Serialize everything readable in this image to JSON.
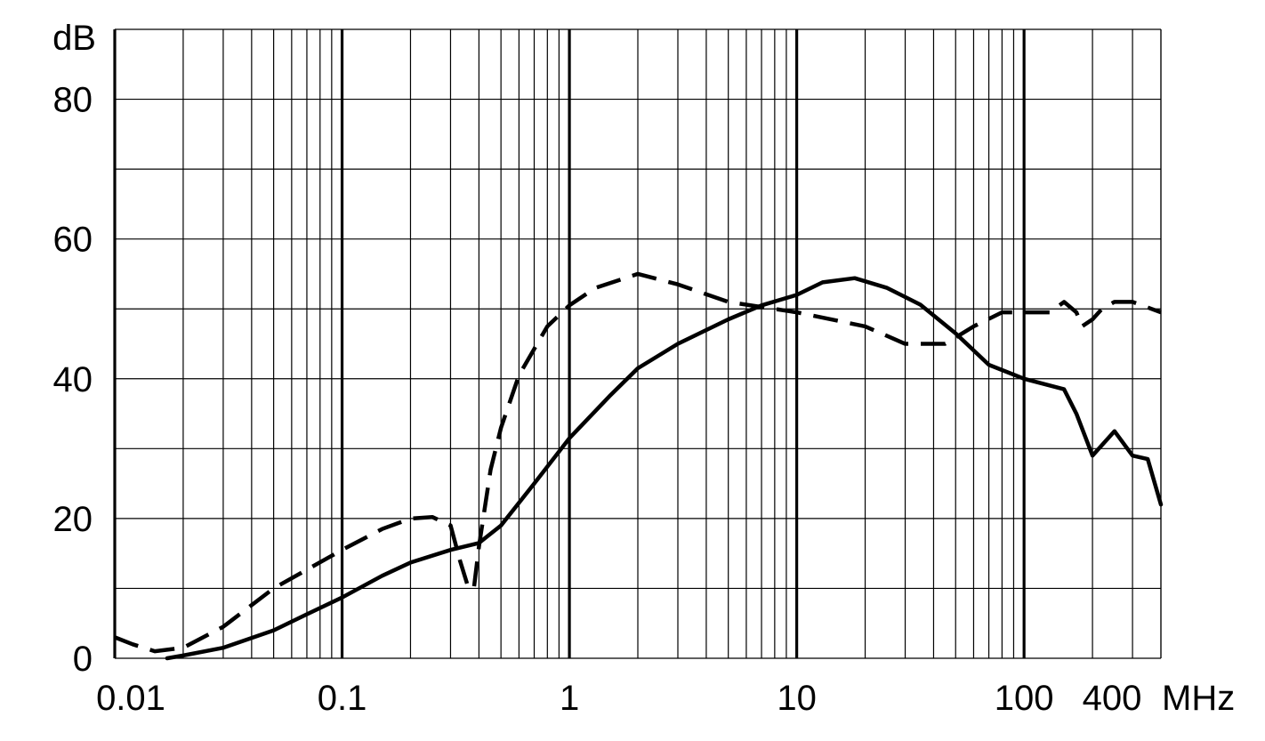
{
  "chart_data": {
    "type": "line",
    "title": "",
    "xlabel": "",
    "ylabel": "",
    "x_scale": "log",
    "xlim": [
      0.01,
      400
    ],
    "ylim": [
      0,
      90
    ],
    "grid": true,
    "y_unit_label": "dB",
    "x_unit_label": "MHz",
    "x_tick_labels": [
      {
        "value": 0.01,
        "label": "0.01"
      },
      {
        "value": 0.1,
        "label": "0.1"
      },
      {
        "value": 1,
        "label": "1"
      },
      {
        "value": 10,
        "label": "10"
      },
      {
        "value": 100,
        "label": "100"
      },
      {
        "value": 400,
        "label": "400"
      }
    ],
    "y_tick_labels": [
      {
        "value": 0,
        "label": "0"
      },
      {
        "value": 20,
        "label": "20"
      },
      {
        "value": 40,
        "label": "40"
      },
      {
        "value": 60,
        "label": "60"
      },
      {
        "value": 80,
        "label": "80"
      }
    ],
    "y_gridlines": [
      0,
      10,
      20,
      30,
      40,
      50,
      60,
      70,
      80,
      90
    ],
    "series": [
      {
        "style": "solid",
        "x": [
          0.017,
          0.02,
          0.03,
          0.05,
          0.07,
          0.1,
          0.15,
          0.2,
          0.3,
          0.4,
          0.5,
          0.7,
          1,
          1.5,
          2,
          3,
          5,
          7,
          10,
          13,
          18,
          25,
          35,
          50,
          70,
          100,
          150,
          170,
          200,
          250,
          300,
          350,
          400
        ],
        "y": [
          0,
          0.4,
          1.5,
          4,
          6.3,
          8.7,
          11.8,
          13.7,
          15.5,
          16.5,
          19,
          25,
          31.5,
          37.5,
          41.5,
          45,
          48.5,
          50.5,
          52,
          53.8,
          54.4,
          53,
          50.6,
          46.5,
          42,
          40,
          38.5,
          35,
          29,
          32.5,
          29,
          28.5,
          22
        ]
      },
      {
        "style": "dashed",
        "x": [
          0.01,
          0.012,
          0.015,
          0.02,
          0.03,
          0.05,
          0.1,
          0.15,
          0.2,
          0.25,
          0.3,
          0.33,
          0.36,
          0.38,
          0.4,
          0.45,
          0.5,
          0.6,
          0.8,
          1,
          1.3,
          2,
          3,
          5,
          10,
          20,
          30,
          45,
          60,
          80,
          100,
          130,
          150,
          170,
          180,
          200,
          220,
          250,
          300,
          400
        ],
        "y": [
          3,
          2,
          1,
          1.5,
          4.5,
          10,
          15.5,
          18.5,
          20,
          20.2,
          19,
          14,
          10,
          10,
          16,
          27,
          33,
          40.5,
          47.5,
          50.5,
          53,
          55,
          53.5,
          51,
          49.5,
          47.5,
          45,
          45,
          47.5,
          49.5,
          49.5,
          49.5,
          51,
          49.5,
          47.5,
          48.5,
          50,
          51,
          51,
          49.5
        ]
      }
    ]
  }
}
